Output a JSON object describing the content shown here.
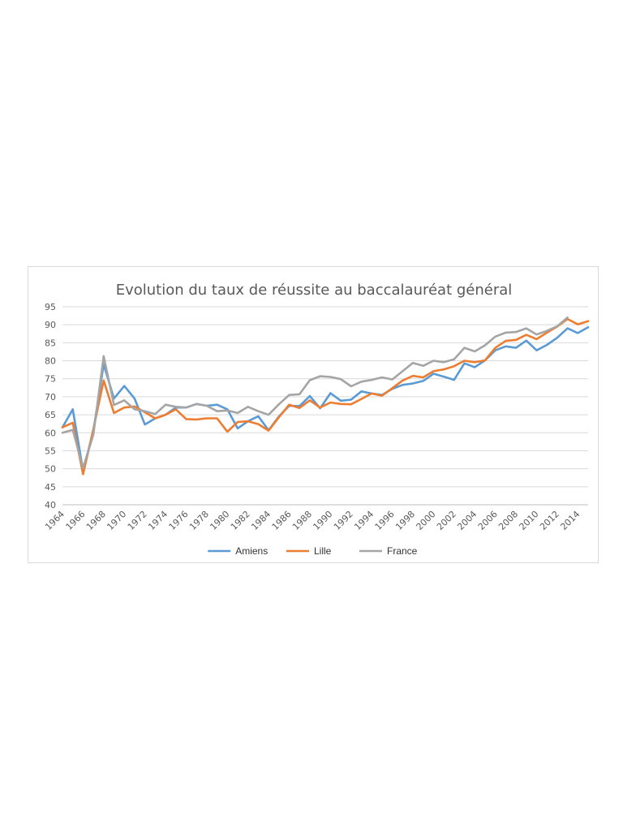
{
  "chart_data": {
    "type": "line",
    "title": "Evolution du taux de réussite au baccalauréat général",
    "xlabel": "",
    "ylabel": "",
    "ylim": [
      40,
      95
    ],
    "yticks": [
      40,
      45,
      50,
      55,
      60,
      65,
      70,
      75,
      80,
      85,
      90,
      95
    ],
    "x": [
      1964,
      1965,
      1966,
      1967,
      1968,
      1969,
      1970,
      1971,
      1972,
      1973,
      1974,
      1975,
      1976,
      1977,
      1978,
      1979,
      1980,
      1981,
      1982,
      1983,
      1984,
      1985,
      1986,
      1987,
      1988,
      1989,
      1990,
      1991,
      1992,
      1993,
      1994,
      1995,
      1996,
      1997,
      1998,
      1999,
      2000,
      2001,
      2002,
      2003,
      2004,
      2005,
      2006,
      2007,
      2008,
      2009,
      2010,
      2011,
      2012,
      2013,
      2014,
      2015
    ],
    "xtick_labels": [
      "1964",
      "1966",
      "1968",
      "1970",
      "1972",
      "1974",
      "1976",
      "1978",
      "1980",
      "1982",
      "1984",
      "1986",
      "1988",
      "1990",
      "1992",
      "1994",
      "1996",
      "1998",
      "2000",
      "2002",
      "2004",
      "2006",
      "2008",
      "2010",
      "2012",
      "2014"
    ],
    "grid": true,
    "legend_position": "bottom",
    "series": [
      {
        "name": "Amiens",
        "color": "#5b9bd5",
        "values": [
          61.5,
          66.5,
          49.5,
          60.5,
          79.0,
          69.5,
          73.0,
          69.5,
          62.3,
          64.0,
          65.0,
          67.0,
          67.0,
          68.0,
          67.5,
          67.8,
          66.5,
          61.2,
          63.2,
          64.6,
          60.7,
          64.5,
          67.5,
          67.4,
          70.2,
          66.8,
          71.0,
          68.9,
          69.2,
          71.5,
          70.9,
          70.5,
          72.2,
          73.3,
          73.7,
          74.4,
          76.4,
          75.6,
          74.7,
          79.3,
          78.2,
          80.1,
          82.9,
          84.0,
          83.6,
          85.6,
          82.9,
          84.4,
          86.4,
          89.0,
          87.7,
          89.3
        ]
      },
      {
        "name": "Lille",
        "color": "#ed7d31",
        "values": [
          61.5,
          62.8,
          48.5,
          61.0,
          74.5,
          65.5,
          67.0,
          67.3,
          65.7,
          64.0,
          65.0,
          66.5,
          63.8,
          63.7,
          64.0,
          64.0,
          60.3,
          63.0,
          63.2,
          62.4,
          60.6,
          64.3,
          67.8,
          66.9,
          69.0,
          67.0,
          68.4,
          68.0,
          67.9,
          69.4,
          70.9,
          70.3,
          72.4,
          74.5,
          75.8,
          75.4,
          77.1,
          77.6,
          78.5,
          80.0,
          79.6,
          80.1,
          83.6,
          85.5,
          85.8,
          87.2,
          86.0,
          87.8,
          89.5,
          91.6,
          90.1,
          91.0
        ]
      },
      {
        "name": "France",
        "color": "#a5a5a5",
        "values": [
          60.0,
          60.8,
          50.2,
          59.5,
          81.3,
          67.7,
          69.0,
          66.5,
          66.0,
          65.2,
          67.8,
          67.2,
          67.0,
          68.0,
          67.5,
          66.0,
          66.2,
          65.5,
          67.2,
          66.0,
          65.0,
          67.9,
          70.5,
          70.7,
          74.6,
          75.7,
          75.5,
          74.9,
          72.9,
          74.2,
          74.7,
          75.4,
          74.8,
          77.1,
          79.4,
          78.6,
          80.0,
          79.6,
          80.4,
          83.6,
          82.6,
          84.3,
          86.7,
          87.8,
          88.0,
          89.0,
          87.3,
          88.3,
          89.6,
          92.0,
          null,
          null
        ]
      }
    ]
  }
}
